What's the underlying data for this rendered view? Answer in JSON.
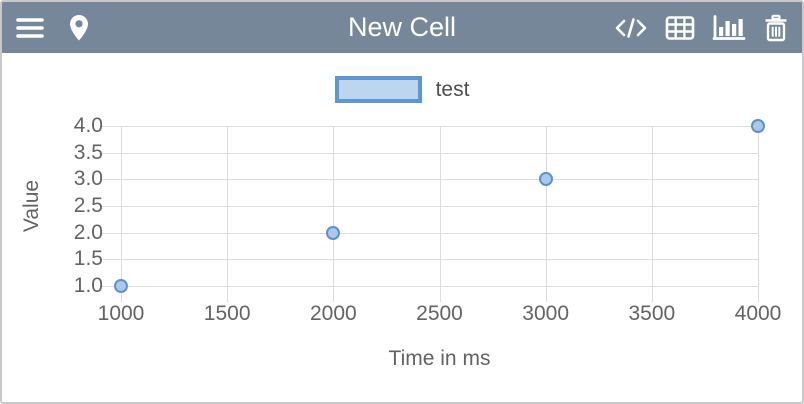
{
  "header": {
    "title": "New Cell",
    "icons_left": [
      "menu-icon",
      "location-pin-icon"
    ],
    "icons_right": [
      "code-icon",
      "table-icon",
      "bar-chart-icon",
      "trash-icon"
    ]
  },
  "colors": {
    "header_bg": "#76879a",
    "card_border": "#c9c9c9",
    "grid": "#dcdcdc",
    "axis_text": "#636363",
    "series_stroke": "#5b91cf",
    "series_fill": "#abc8e8",
    "legend_fill": "#bdd5ee"
  },
  "chart_data": {
    "type": "scatter",
    "series": [
      {
        "name": "test",
        "x": [
          1000,
          2000,
          3000,
          4000
        ],
        "y": [
          1.0,
          2.0,
          3.0,
          4.0
        ]
      }
    ],
    "title": "",
    "xlabel": "Time in ms",
    "ylabel": "Value",
    "xlim": [
      1000,
      4000
    ],
    "ylim": [
      1.0,
      4.0
    ],
    "xticks": [
      "1000",
      "1500",
      "2000",
      "2500",
      "3000",
      "3500",
      "4000"
    ],
    "yticks": [
      "1.0",
      "1.5",
      "2.0",
      "2.5",
      "3.0",
      "3.5",
      "4.0"
    ],
    "grid": true,
    "legend_position": "top"
  }
}
